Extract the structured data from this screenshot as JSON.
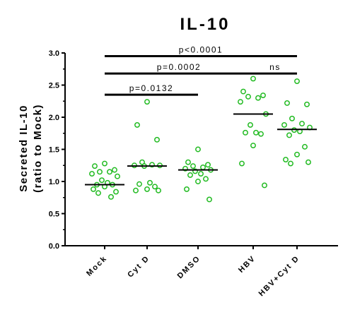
{
  "chart_data": {
    "type": "scatter",
    "title": "IL-10",
    "ylabel_line1": "Secreted IL-10",
    "ylabel_line2": "(ratio to Mock)",
    "ylim": [
      0,
      3.0
    ],
    "yticks": [
      "0.0",
      "0.5",
      "1.0",
      "1.5",
      "2.0",
      "2.5",
      "3.0"
    ],
    "categories": [
      "Mock",
      "Cyt D",
      "DMSO",
      "HBV",
      "HBV+Cyt D"
    ],
    "marker_color": "#22bb22",
    "series": [
      {
        "category": "Mock",
        "mean": 0.95,
        "values": [
          1.28,
          1.24,
          1.18,
          1.15,
          1.15,
          1.12,
          1.08,
          1.02,
          0.98,
          0.95,
          0.95,
          0.92,
          0.88,
          0.84,
          0.82,
          0.76
        ]
      },
      {
        "category": "Cyt D",
        "mean": 1.24,
        "values": [
          2.24,
          1.88,
          1.65,
          1.3,
          1.26,
          1.25,
          1.24,
          1.25,
          0.98,
          0.96,
          0.92,
          0.88,
          0.86,
          0.86
        ]
      },
      {
        "category": "DMSO",
        "mean": 1.18,
        "values": [
          1.5,
          1.3,
          1.26,
          1.24,
          1.22,
          1.2,
          1.18,
          1.16,
          1.12,
          1.1,
          1.04,
          1.0,
          0.88,
          0.72
        ]
      },
      {
        "category": "HBV",
        "mean": 2.05,
        "values": [
          2.6,
          2.4,
          2.34,
          2.32,
          2.3,
          2.24,
          2.05,
          1.88,
          1.76,
          1.76,
          1.74,
          1.56,
          1.28,
          0.94
        ]
      },
      {
        "category": "HBV+Cyt D",
        "mean": 1.81,
        "values": [
          2.56,
          2.22,
          2.2,
          1.98,
          1.9,
          1.88,
          1.84,
          1.8,
          1.78,
          1.72,
          1.54,
          1.42,
          1.34,
          1.3,
          1.28
        ]
      }
    ],
    "comparisons": [
      {
        "from": "Mock",
        "to": "DMSO",
        "label": "p=0.0132",
        "y": 2.35
      },
      {
        "from": "Mock",
        "to": "HBV",
        "label": "p=0.0002",
        "y": 2.68
      },
      {
        "from": "HBV",
        "to": "HBV+Cyt D",
        "label": "ns",
        "y": 2.68
      },
      {
        "from": "Mock",
        "to": "HBV+Cyt D",
        "label": "p<0.0001",
        "y": 2.95
      }
    ]
  }
}
